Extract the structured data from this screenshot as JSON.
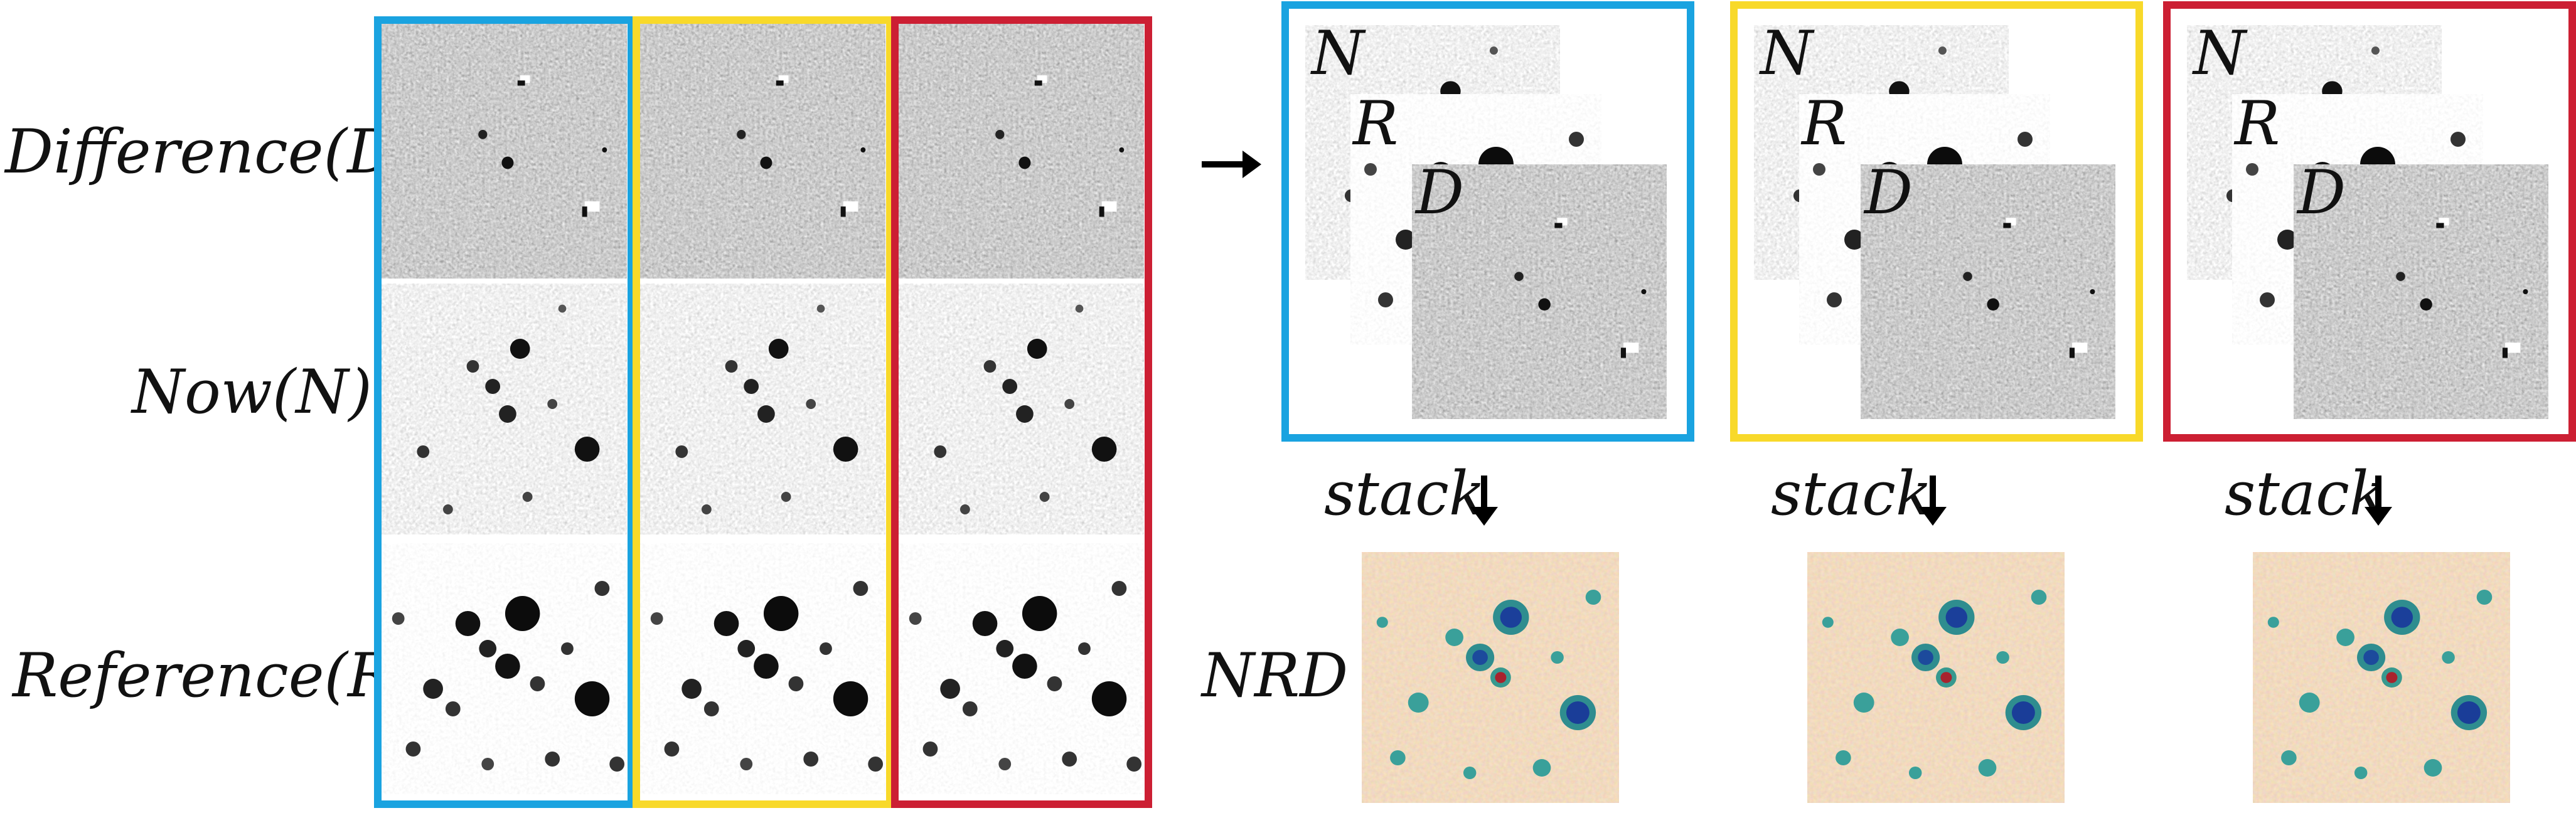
{
  "row_labels": [
    "Difference(D)",
    "Now(N)",
    "Reference(R)"
  ],
  "stack_letters": [
    "N",
    "R",
    "D"
  ],
  "stack_label": "stack",
  "output_label": "NRD",
  "colors": {
    "frame_1": "#1aa3e0",
    "frame_2": "#f8d92a",
    "frame_3": "#cc1f33",
    "arrow": "#000000"
  }
}
